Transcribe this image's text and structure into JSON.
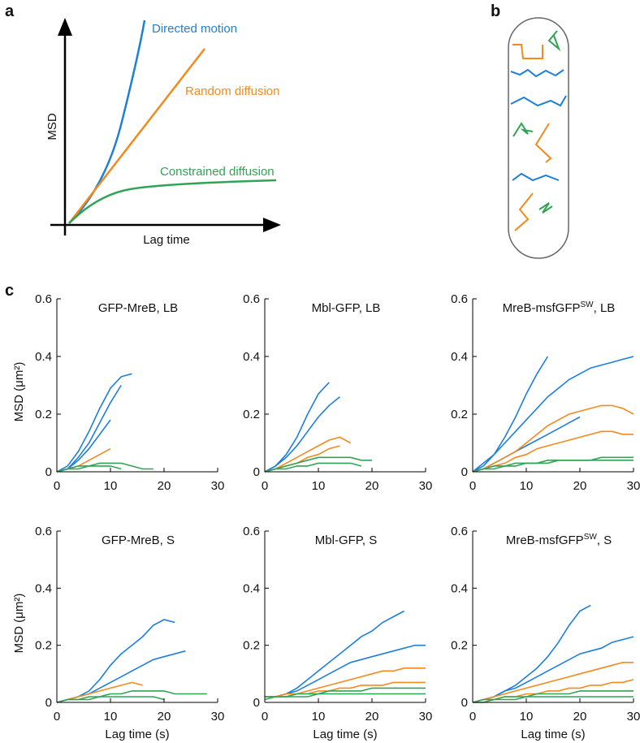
{
  "panels": {
    "a": {
      "label": "a",
      "y_label": "MSD",
      "x_label": "Lag time",
      "curves": [
        "Directed motion",
        "Random diffusion",
        "Constrained diffusion"
      ]
    },
    "b": {
      "label": "b"
    },
    "c": {
      "label": "c"
    }
  },
  "chart_data": [
    {
      "type": "line",
      "title": "GFP-MreB, LB",
      "ylabel": "MSD (μm²)",
      "xlim": [
        0,
        30
      ],
      "xticks": [
        0,
        10,
        20,
        30
      ],
      "ylim": [
        0,
        0.6
      ],
      "yticks": [
        0,
        0.2,
        0.4,
        0.6
      ],
      "x": [
        0,
        2,
        4,
        6,
        8,
        10,
        12,
        14,
        16,
        18,
        20,
        22,
        24,
        26,
        28,
        30
      ],
      "series": [
        {
          "color": "#1e7fd9",
          "values": [
            0,
            0.02,
            0.07,
            0.14,
            0.22,
            0.29,
            0.33,
            0.34,
            null,
            null,
            null,
            null,
            null,
            null,
            null,
            null
          ]
        },
        {
          "color": "#1e7fd9",
          "values": [
            0,
            0.01,
            0.05,
            0.1,
            0.17,
            0.24,
            0.3,
            null,
            null,
            null,
            null,
            null,
            null,
            null,
            null,
            null
          ]
        },
        {
          "color": "#1e7fd9",
          "values": [
            0,
            0.01,
            0.04,
            0.08,
            0.13,
            0.18,
            null,
            null,
            null,
            null,
            null,
            null,
            null,
            null,
            null,
            null
          ]
        },
        {
          "color": "#f28a1e",
          "values": [
            0,
            0.01,
            0.02,
            0.04,
            0.06,
            0.08,
            null,
            null,
            null,
            null,
            null,
            null,
            null,
            null,
            null,
            null
          ]
        },
        {
          "color": "#31a354",
          "values": [
            0,
            0.01,
            0.02,
            0.02,
            0.03,
            0.03,
            0.03,
            0.02,
            0.01,
            0.01,
            null,
            null,
            null,
            null,
            null,
            null
          ]
        },
        {
          "color": "#31a354",
          "values": [
            0,
            0.01,
            0.01,
            0.02,
            0.02,
            0.02,
            0.01,
            null,
            null,
            null,
            null,
            null,
            null,
            null,
            null,
            null
          ]
        }
      ]
    },
    {
      "type": "line",
      "title": "Mbl-GFP, LB",
      "xlim": [
        0,
        30
      ],
      "xticks": [
        0,
        10,
        20,
        30
      ],
      "ylim": [
        0,
        0.6
      ],
      "yticks": [
        0,
        0.2,
        0.4,
        0.6
      ],
      "x": [
        0,
        2,
        4,
        6,
        8,
        10,
        12,
        14,
        16,
        18,
        20,
        22,
        24,
        26,
        28,
        30
      ],
      "series": [
        {
          "color": "#1e7fd9",
          "values": [
            0,
            0.02,
            0.06,
            0.12,
            0.2,
            0.27,
            0.31,
            null,
            null,
            null,
            null,
            null,
            null,
            null,
            null,
            null
          ]
        },
        {
          "color": "#1e7fd9",
          "values": [
            0,
            0.02,
            0.05,
            0.09,
            0.14,
            0.19,
            0.23,
            0.26,
            null,
            null,
            null,
            null,
            null,
            null,
            null,
            null
          ]
        },
        {
          "color": "#f28a1e",
          "values": [
            0,
            0.01,
            0.03,
            0.05,
            0.07,
            0.09,
            0.11,
            0.12,
            0.1,
            null,
            null,
            null,
            null,
            null,
            null,
            null
          ]
        },
        {
          "color": "#f28a1e",
          "values": [
            0,
            0.01,
            0.02,
            0.03,
            0.05,
            0.06,
            0.08,
            0.09,
            null,
            null,
            null,
            null,
            null,
            null,
            null,
            null
          ]
        },
        {
          "color": "#31a354",
          "values": [
            0,
            0.01,
            0.02,
            0.03,
            0.04,
            0.05,
            0.05,
            0.05,
            0.05,
            0.04,
            0.04,
            null,
            null,
            null,
            null,
            null
          ]
        },
        {
          "color": "#31a354",
          "values": [
            0,
            0.01,
            0.01,
            0.02,
            0.02,
            0.03,
            0.03,
            0.03,
            0.03,
            0.02,
            null,
            null,
            null,
            null,
            null,
            null
          ]
        }
      ]
    },
    {
      "type": "line",
      "title": {
        "text": "MreB-msfGFP",
        "sup": "SW",
        "after": ", LB"
      },
      "xlim": [
        0,
        30
      ],
      "xticks": [
        0,
        10,
        20,
        30
      ],
      "ylim": [
        0,
        0.6
      ],
      "yticks": [
        0,
        0.2,
        0.4,
        0.6
      ],
      "x": [
        0,
        2,
        4,
        6,
        8,
        10,
        12,
        14,
        16,
        18,
        20,
        22,
        24,
        26,
        28,
        30
      ],
      "series": [
        {
          "color": "#1e7fd9",
          "values": [
            0,
            0.03,
            0.06,
            0.1,
            0.14,
            0.18,
            0.22,
            0.26,
            0.29,
            0.32,
            0.34,
            0.36,
            0.37,
            0.38,
            0.39,
            0.4
          ]
        },
        {
          "color": "#1e7fd9",
          "values": [
            0,
            0.02,
            0.06,
            0.12,
            0.19,
            0.27,
            0.34,
            0.4,
            null,
            null,
            null,
            null,
            null,
            null,
            null,
            null
          ]
        },
        {
          "color": "#1e7fd9",
          "values": [
            0,
            0.01,
            0.03,
            0.05,
            0.07,
            0.09,
            0.11,
            0.13,
            0.15,
            0.17,
            0.19,
            null,
            null,
            null,
            null,
            null
          ]
        },
        {
          "color": "#f28a1e",
          "values": [
            0,
            0.01,
            0.03,
            0.05,
            0.07,
            0.1,
            0.13,
            0.16,
            0.18,
            0.2,
            0.21,
            0.22,
            0.23,
            0.23,
            0.22,
            0.2
          ]
        },
        {
          "color": "#f28a1e",
          "values": [
            0,
            0.01,
            0.02,
            0.03,
            0.05,
            0.06,
            0.08,
            0.09,
            0.1,
            0.11,
            0.12,
            0.13,
            0.14,
            0.14,
            0.13,
            0.13
          ]
        },
        {
          "color": "#31a354",
          "values": [
            0,
            0.01,
            0.01,
            0.02,
            0.02,
            0.03,
            0.03,
            0.03,
            0.04,
            0.04,
            0.04,
            0.04,
            0.05,
            0.05,
            0.05,
            0.05
          ]
        },
        {
          "color": "#31a354",
          "values": [
            0,
            0.01,
            0.02,
            0.02,
            0.03,
            0.03,
            0.03,
            0.04,
            0.04,
            0.04,
            0.04,
            0.04,
            0.04,
            0.04,
            0.04,
            0.04
          ]
        }
      ]
    },
    {
      "type": "line",
      "title": "GFP-MreB, S",
      "ylabel": "MSD (μm²)",
      "xlabel": "Lag time (s)",
      "xlim": [
        0,
        30
      ],
      "xticks": [
        0,
        10,
        20,
        30
      ],
      "ylim": [
        0,
        0.6
      ],
      "yticks": [
        0,
        0.2,
        0.4,
        0.6
      ],
      "x": [
        0,
        2,
        4,
        6,
        8,
        10,
        12,
        14,
        16,
        18,
        20,
        22,
        24,
        26,
        28,
        30
      ],
      "series": [
        {
          "color": "#1e7fd9",
          "values": [
            0,
            0.01,
            0.02,
            0.04,
            0.08,
            0.13,
            0.17,
            0.2,
            0.23,
            0.27,
            0.29,
            0.28,
            null,
            null,
            null,
            null
          ]
        },
        {
          "color": "#1e7fd9",
          "values": [
            0,
            0.01,
            0.02,
            0.03,
            0.05,
            0.07,
            0.09,
            0.11,
            0.13,
            0.15,
            0.16,
            0.17,
            0.18,
            null,
            null,
            null
          ]
        },
        {
          "color": "#f28a1e",
          "values": [
            0,
            0.01,
            0.02,
            0.03,
            0.04,
            0.05,
            0.06,
            0.07,
            0.06,
            null,
            null,
            null,
            null,
            null,
            null,
            null
          ]
        },
        {
          "color": "#31a354",
          "values": [
            0,
            0.01,
            0.01,
            0.02,
            0.02,
            0.03,
            0.03,
            0.04,
            0.04,
            0.04,
            0.04,
            0.03,
            0.03,
            0.03,
            0.03,
            null
          ]
        },
        {
          "color": "#31a354",
          "values": [
            0,
            0.01,
            0.01,
            0.01,
            0.02,
            0.02,
            0.02,
            0.02,
            0.02,
            0.02,
            0.01,
            null,
            null,
            null,
            null,
            null
          ]
        }
      ]
    },
    {
      "type": "line",
      "title": "Mbl-GFP, S",
      "xlabel": "Lag time (s)",
      "xlim": [
        0,
        30
      ],
      "xticks": [
        0,
        10,
        20,
        30
      ],
      "ylim": [
        0,
        0.6
      ],
      "yticks": [
        0,
        0.2,
        0.4,
        0.6
      ],
      "x": [
        0,
        2,
        4,
        6,
        8,
        10,
        12,
        14,
        16,
        18,
        20,
        22,
        24,
        26,
        28,
        30
      ],
      "series": [
        {
          "color": "#1e7fd9",
          "values": [
            0.02,
            0.02,
            0.03,
            0.05,
            0.08,
            0.11,
            0.14,
            0.17,
            0.2,
            0.23,
            0.25,
            0.28,
            0.3,
            0.32,
            null,
            null
          ]
        },
        {
          "color": "#1e7fd9",
          "values": [
            0.02,
            0.02,
            0.03,
            0.04,
            0.06,
            0.08,
            0.1,
            0.12,
            0.14,
            0.15,
            0.16,
            0.17,
            0.18,
            0.19,
            0.2,
            0.2
          ]
        },
        {
          "color": "#f28a1e",
          "values": [
            0.02,
            0.02,
            0.03,
            0.03,
            0.04,
            0.05,
            0.06,
            0.07,
            0.08,
            0.09,
            0.1,
            0.11,
            0.11,
            0.12,
            0.12,
            0.12
          ]
        },
        {
          "color": "#f28a1e",
          "values": [
            0.02,
            0.02,
            0.02,
            0.03,
            0.03,
            0.04,
            0.04,
            0.05,
            0.05,
            0.06,
            0.06,
            0.06,
            0.07,
            0.07,
            0.07,
            0.07
          ]
        },
        {
          "color": "#31a354",
          "values": [
            0.02,
            0.02,
            0.02,
            0.03,
            0.03,
            0.03,
            0.04,
            0.04,
            0.04,
            0.04,
            0.05,
            0.05,
            0.05,
            0.05,
            0.05,
            0.05
          ]
        },
        {
          "color": "#31a354",
          "values": [
            0.01,
            0.02,
            0.02,
            0.02,
            0.02,
            0.03,
            0.03,
            0.03,
            0.03,
            0.03,
            0.03,
            0.03,
            0.03,
            0.03,
            0.03,
            0.03
          ]
        }
      ]
    },
    {
      "type": "line",
      "title": {
        "text": "MreB-msfGFP",
        "sup": "SW",
        "after": ", S"
      },
      "xlabel": "Lag time (s)",
      "xlim": [
        0,
        30
      ],
      "xticks": [
        0,
        10,
        20,
        30
      ],
      "ylim": [
        0,
        0.6
      ],
      "yticks": [
        0,
        0.2,
        0.4,
        0.6
      ],
      "x": [
        0,
        2,
        4,
        6,
        8,
        10,
        12,
        14,
        16,
        18,
        20,
        22,
        24,
        26,
        28,
        30
      ],
      "series": [
        {
          "color": "#1e7fd9",
          "values": [
            0,
            0.01,
            0.02,
            0.04,
            0.06,
            0.09,
            0.12,
            0.16,
            0.21,
            0.27,
            0.32,
            0.34,
            null,
            null,
            null,
            null
          ]
        },
        {
          "color": "#1e7fd9",
          "values": [
            0,
            0.01,
            0.02,
            0.04,
            0.05,
            0.07,
            0.09,
            0.11,
            0.13,
            0.15,
            0.17,
            0.18,
            0.19,
            0.21,
            0.22,
            0.23
          ]
        },
        {
          "color": "#f28a1e",
          "values": [
            0,
            0.01,
            0.02,
            0.03,
            0.04,
            0.05,
            0.06,
            0.07,
            0.08,
            0.09,
            0.1,
            0.11,
            0.12,
            0.13,
            0.14,
            0.14
          ]
        },
        {
          "color": "#f28a1e",
          "values": [
            0,
            0.01,
            0.01,
            0.02,
            0.02,
            0.03,
            0.03,
            0.04,
            0.04,
            0.05,
            0.05,
            0.06,
            0.06,
            0.07,
            0.07,
            0.08
          ]
        },
        {
          "color": "#31a354",
          "values": [
            0,
            0.01,
            0.01,
            0.02,
            0.02,
            0.02,
            0.03,
            0.03,
            0.03,
            0.03,
            0.04,
            0.04,
            0.04,
            0.04,
            0.04,
            0.04
          ]
        },
        {
          "color": "#31a354",
          "values": [
            0,
            0,
            0.01,
            0.01,
            0.01,
            0.02,
            0.02,
            0.02,
            0.02,
            0.02,
            0.02,
            0.02,
            0.02,
            0.02,
            0.02,
            0.02
          ]
        }
      ]
    }
  ]
}
